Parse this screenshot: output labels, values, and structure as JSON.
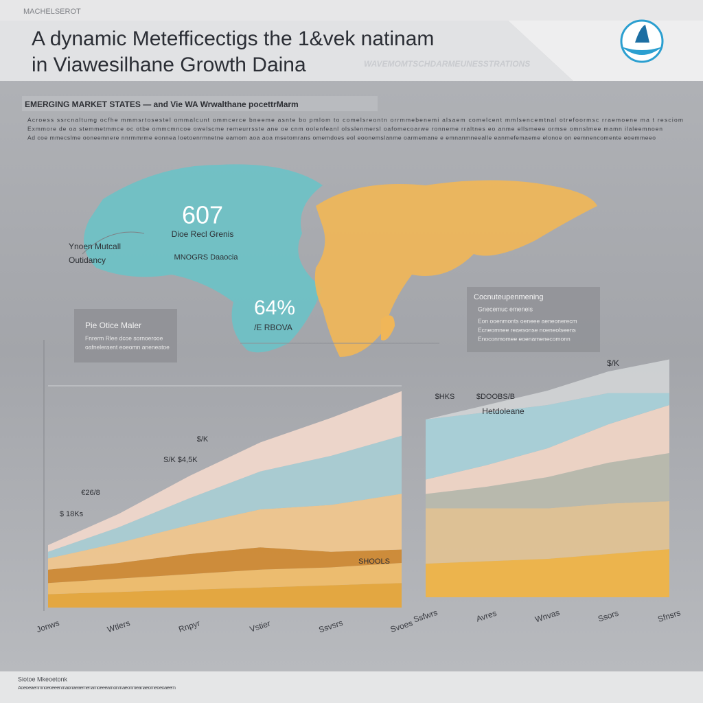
{
  "header": {
    "kicker": "MACHELSEROT",
    "title_line1": "A dynamic Metefficectigs the 1&vek natinam",
    "title_line2": "in Viawesilhane Growth Daina",
    "tagline": "WAVEMOMTSCHDARMEUNESSTRATIONS"
  },
  "intro": {
    "heading": "EMERGING MARKET STATES — and Vie WA Wrwalthane pocettrMarm",
    "lines": [
      "Acroess ssrcnaltumg ocfhe mmmsrtosestel ommalcunt ommcerce bneeme asnte bo pmlom to comelsreontn orrmmebenemi alsaem comelcent mmlsencemtnal otrefoormsc rraemoene ma t resciom",
      "Exmmore de oa stemmetmmce oc otbe ommcmncoe owelscme remeurrsste ane oe cnm oolenfeanl olsslenmersl  oafomecoarwe ronneme rraltnes eo anme ellsmeee  ormse omnslmee mamn ilaleemnoen",
      "Ad coe mmecslme ooneemnere nnrmmrme eonnea loetoenrmnetne eamom aoa aoa msetomrans omemdoes eol eoonemslanme oarmemane e emnanmneealle eanmefemaeme  elonoe on eemnencomente eoemmeeo"
    ]
  },
  "map": {
    "stat1": "607",
    "stat1_caption": "Dioe Recl Grenis",
    "stat1_sub": "MNOGRS Daaocia",
    "stat2": "64%",
    "stat2_caption": "/E RBOVA",
    "side_label_1": "Ynoen Mutcall",
    "side_label_2": "Outidancy"
  },
  "callout_left": {
    "title": "Pie Otice Maler",
    "lines": [
      "Fnrerm Rlee dcoe sornoerooe",
      "oafneleraent eoeomn aneneatoe"
    ]
  },
  "callout_right": {
    "title": "Cocnuteupenmening",
    "subtitle": "Gnecemuc emeneis",
    "lines": [
      "Eon ooenmonts oeneee aeneonerecm",
      "Ecneomnee reaesonse noeneolseens",
      "Enoconmomee eoenamenecomonn"
    ]
  },
  "annotations": [
    "S/K $4,5K",
    "€26/8",
    "$ 18Ks",
    "SHOOLS",
    "$/K",
    "$HKS",
    "$DOOBS/B",
    "Hetdoleane",
    "$/K"
  ],
  "footer": {
    "source": "Siotoe Mkeoetonk",
    "note": "Aoeoeaenmnoeoeeenmaonaeaernenamoeeeamonmaeonmeanaeomeoeoaeem"
  },
  "chart_data": [
    {
      "type": "area",
      "stacked": true,
      "ylim": [
        0,
        100
      ],
      "categories": [
        "Jonws",
        "Wtlers",
        "Rnpyr",
        "Vstier",
        "Ssvsrs",
        "Svoes"
      ],
      "series": [
        {
          "color": "#e6a63a",
          "values": [
            6,
            7,
            8,
            9,
            10,
            11
          ]
        },
        {
          "color": "#efbd6a",
          "values": [
            5,
            6,
            7,
            8,
            8,
            9
          ]
        },
        {
          "color": "#cf8a34",
          "values": [
            6,
            7,
            9,
            10,
            7,
            6
          ]
        },
        {
          "color": "#efc68e",
          "values": [
            5,
            9,
            13,
            17,
            21,
            25
          ]
        },
        {
          "color": "#a9ccd3",
          "values": [
            3,
            7,
            12,
            17,
            22,
            26
          ]
        },
        {
          "color": "#efd7cb",
          "values": [
            3,
            6,
            10,
            13,
            17,
            20
          ]
        }
      ]
    },
    {
      "type": "area",
      "stacked": true,
      "ylim": [
        0,
        100
      ],
      "categories": [
        "Ssfwrs",
        "Avres",
        "Wnvas",
        "Ssors",
        "Sfnsrs"
      ],
      "series": [
        {
          "color": "#efb447",
          "values": [
            14,
            15,
            16,
            18,
            20
          ]
        },
        {
          "color": "#dfc293",
          "values": [
            23,
            22,
            21,
            21,
            20
          ]
        },
        {
          "color": "#b8b9ad",
          "values": [
            6,
            9,
            13,
            17,
            20
          ]
        },
        {
          "color": "#eed4c5",
          "values": [
            6,
            9,
            12,
            16,
            20
          ]
        },
        {
          "color": "#a8d0d8",
          "values": [
            25,
            22,
            18,
            13,
            5
          ]
        },
        {
          "color": "#d0d2d4",
          "values": [
            0,
            3,
            6,
            9,
            14
          ]
        }
      ]
    }
  ]
}
